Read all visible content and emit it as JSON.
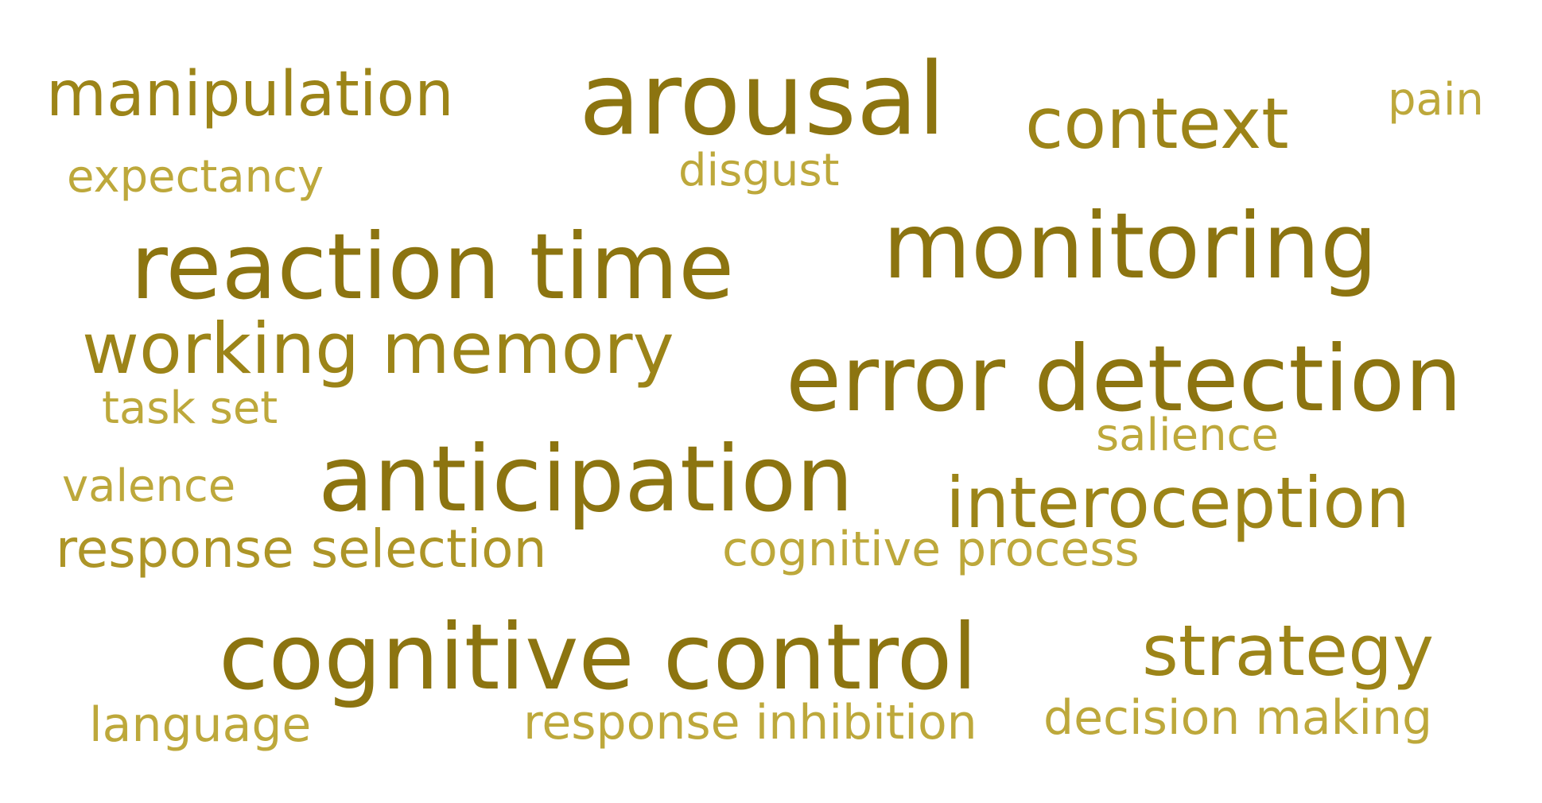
{
  "colors": {
    "darkest": "#8c7410",
    "dark": "#9c8418",
    "medium": "#ad9527",
    "light": "#bda83b",
    "lightest": "#c4ae44",
    "background": "#ffffff"
  },
  "words": {
    "manipulation": "manipulation",
    "arousal": "arousal",
    "context": "context",
    "pain": "pain",
    "expectancy": "expectancy",
    "disgust": "disgust",
    "reaction_time": "reaction time",
    "monitoring": "monitoring",
    "working_memory": "working memory",
    "error_detection": "error detection",
    "task_set": "task set",
    "salience": "salience",
    "anticipation": "anticipation",
    "valence": "valence",
    "interoception": "interoception",
    "response_selection": "response selection",
    "cognitive_process": "cognitive process",
    "cognitive_control": "cognitive control",
    "strategy": "strategy",
    "language": "language",
    "response_inhibition": "response inhibition",
    "decision_making": "decision making"
  }
}
